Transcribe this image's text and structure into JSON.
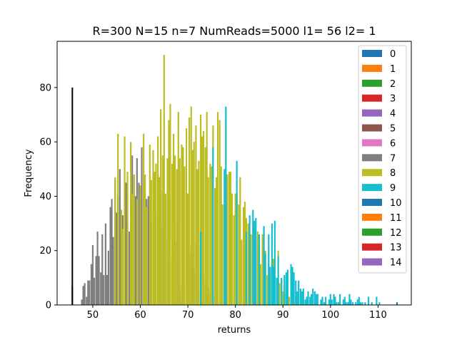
{
  "chart_data": {
    "type": "histogram",
    "title": "R=300 N=15 n=7 NumReads=5000 l1= 56 l2= 1",
    "xlabel": "returns",
    "ylabel": "Frequency",
    "xlim": [
      42.5,
      117.0
    ],
    "ylim": [
      0,
      97
    ],
    "xticks": [
      50,
      60,
      70,
      80,
      90,
      100,
      110
    ],
    "yticks": [
      0,
      20,
      40,
      60,
      80
    ],
    "bin_width": 0.33,
    "legend_position": "upper right",
    "grid": false,
    "series": [
      {
        "name": "0",
        "color": "#1f77b4",
        "x": [
          114.0
        ],
        "y": [
          1
        ]
      },
      {
        "name": "1",
        "color": "#ff7f0e",
        "x": [],
        "y": []
      },
      {
        "name": "2",
        "color": "#2ca02c",
        "x": [],
        "y": []
      },
      {
        "name": "3",
        "color": "#d62728",
        "x": [],
        "y": []
      },
      {
        "name": "4",
        "color": "#9467bd",
        "x": [],
        "y": []
      },
      {
        "name": "5",
        "color": "#8c564b",
        "x": [],
        "y": []
      },
      {
        "name": "6",
        "color": "#e377c2",
        "x": [
          55.3
        ],
        "y": [
          1
        ]
      },
      {
        "name": "7",
        "color": "#7f7f7f",
        "x": [
          45.7,
          47.7,
          48.0,
          48.3,
          48.7,
          49.0,
          49.3,
          49.7,
          50.0,
          50.3,
          50.7,
          51.0,
          51.3,
          51.7,
          52.0,
          52.3,
          52.7,
          53.0,
          53.3,
          53.7,
          54.0,
          54.3,
          54.7,
          55.0,
          55.3,
          55.7,
          56.0,
          56.3,
          56.7,
          57.0,
          57.3,
          57.7,
          58.0,
          58.3,
          58.7,
          59.0,
          59.3,
          59.7,
          60.0,
          60.3,
          60.7,
          61.0,
          61.3,
          61.7,
          62.0,
          62.3,
          62.7,
          63.0,
          63.3,
          63.7,
          64.0,
          64.3,
          64.7,
          65.0,
          65.3,
          65.7,
          66.0,
          66.3,
          66.7,
          67.0,
          67.3,
          67.7,
          68.0,
          68.3,
          68.7,
          69.0,
          69.3,
          69.7,
          70.0,
          70.3,
          70.7,
          71.0,
          71.3,
          71.7,
          72.0,
          72.3,
          72.7,
          73.0,
          73.3,
          73.7,
          74.0,
          74.3,
          74.7,
          75.0,
          75.3,
          75.7,
          76.0,
          76.3
        ],
        "y": [
          7,
          2,
          7,
          8,
          3,
          9,
          9,
          15,
          22,
          10,
          18,
          27,
          18,
          12,
          26,
          11,
          30,
          11,
          20,
          36,
          39,
          25,
          46,
          34,
          40,
          50,
          30,
          33,
          25,
          45,
          32,
          27,
          40,
          55,
          47,
          40,
          54,
          45,
          34,
          58,
          47,
          31,
          39,
          40,
          40,
          31,
          34,
          21,
          33,
          48,
          38,
          42,
          30,
          18,
          40,
          24,
          12,
          17,
          16,
          19,
          23,
          30,
          16,
          5,
          7,
          15,
          7,
          22,
          11,
          19,
          22,
          14,
          12,
          23,
          13,
          10,
          5,
          13,
          11,
          8,
          6,
          6,
          4,
          3,
          5,
          4,
          5,
          1
        ]
      },
      {
        "name": "8",
        "color": "#bcbd22",
        "x": [
          54.7,
          55.3,
          56.0,
          56.3,
          56.7,
          57.3,
          58.0,
          58.3,
          58.7,
          59.3,
          60.0,
          60.7,
          61.0,
          61.3,
          62.0,
          62.3,
          62.7,
          63.0,
          63.3,
          63.7,
          64.0,
          64.3,
          64.7,
          65.0,
          65.3,
          65.7,
          66.0,
          66.3,
          66.7,
          67.0,
          67.3,
          67.7,
          68.0,
          68.3,
          68.7,
          69.0,
          69.3,
          69.7,
          70.0,
          70.3,
          70.7,
          71.0,
          71.3,
          71.7,
          72.0,
          72.3,
          72.7,
          73.0,
          73.3,
          73.7,
          74.0,
          74.3,
          74.7,
          75.0,
          75.3,
          75.7,
          76.0,
          76.3,
          76.7,
          77.0,
          77.3,
          77.7,
          78.0,
          78.3,
          78.7,
          79.0,
          79.3,
          79.7,
          80.0,
          80.3,
          80.7,
          81.0,
          81.3,
          81.7,
          82.0,
          82.3,
          82.7,
          83.0,
          83.3,
          83.7,
          84.0,
          84.3,
          84.7,
          85.0,
          85.3,
          85.7,
          86.0,
          86.3,
          86.7,
          87.0,
          87.3,
          87.7,
          88.0,
          88.3,
          88.7,
          89.0,
          89.3,
          89.7,
          90.0,
          90.3,
          90.7,
          91.0,
          91.3,
          91.7,
          92.0,
          92.3,
          92.7,
          93.0
        ],
        "y": [
          47,
          63,
          35,
          28,
          62,
          49,
          60,
          41,
          48,
          39,
          44,
          63,
          48,
          36,
          59,
          46,
          57,
          49,
          52,
          62,
          47,
          72,
          55,
          92,
          41,
          54,
          68,
          74,
          52,
          63,
          55,
          50,
          71,
          54,
          59,
          58,
          51,
          65,
          41,
          69,
          73,
          57,
          60,
          66,
          50,
          53,
          70,
          62,
          64,
          58,
          71,
          47,
          52,
          51,
          66,
          43,
          47,
          71,
          68,
          51,
          37,
          37,
          68,
          48,
          49,
          49,
          41,
          33,
          41,
          40,
          37,
          47,
          24,
          36,
          38,
          32,
          30,
          24,
          26,
          30,
          28,
          20,
          27,
          22,
          15,
          26,
          14,
          20,
          11,
          21,
          12,
          14,
          17,
          7,
          10,
          20,
          8,
          9,
          5,
          7,
          4,
          7,
          3,
          4,
          4,
          2,
          3,
          2
        ]
      },
      {
        "name": "9",
        "color": "#17becf",
        "x": [
          72.7,
          75.3,
          77.7,
          78.0,
          80.3,
          82.3,
          83.0,
          83.7,
          84.0,
          84.3,
          85.0,
          86.0,
          86.3,
          87.0,
          87.3,
          87.7,
          88.0,
          88.3,
          88.7,
          89.0,
          89.7,
          90.3,
          90.7,
          91.0,
          91.7,
          92.0,
          92.3,
          92.7,
          93.0,
          93.3,
          93.7,
          94.0,
          94.3,
          94.7,
          95.0,
          95.3,
          95.7,
          96.0,
          96.3,
          96.7,
          97.0,
          97.3,
          98.0,
          98.3,
          98.7,
          99.0,
          99.7,
          100.0,
          100.3,
          100.7,
          101.0,
          101.3,
          101.7,
          102.0,
          102.7,
          103.0,
          103.3,
          103.7,
          104.0,
          104.3,
          104.7,
          105.3,
          105.7,
          106.0,
          106.3,
          106.7,
          107.3,
          108.0,
          108.7,
          109.7,
          110.3
        ],
        "y": [
          27,
          58,
          50,
          73,
          53,
          27,
          33,
          35,
          31,
          32,
          26,
          29,
          19,
          26,
          14,
          30,
          14,
          31,
          10,
          18,
          10,
          11,
          12,
          13,
          15,
          14,
          12,
          9,
          5,
          9,
          6,
          5,
          6,
          2,
          3,
          5,
          3,
          4,
          6,
          5,
          4,
          4,
          2,
          3,
          1,
          3,
          2,
          4,
          2,
          4,
          3,
          1,
          1,
          4,
          2,
          3,
          1,
          1,
          4,
          2,
          1,
          1,
          2,
          3,
          1,
          1,
          1,
          3,
          1,
          3,
          1
        ]
      },
      {
        "name": "10",
        "color": "#1f77b4",
        "x": [],
        "y": []
      },
      {
        "name": "11",
        "color": "#ff7f0e",
        "x": [],
        "y": []
      },
      {
        "name": "12",
        "color": "#2ca02c",
        "x": [],
        "y": []
      },
      {
        "name": "13",
        "color": "#d62728",
        "x": [],
        "y": []
      },
      {
        "name": "14",
        "color": "#9467bd",
        "x": [],
        "y": []
      }
    ],
    "vlines": [
      {
        "x": 45.7,
        "y0": 0,
        "y1": 80,
        "color": "#000000"
      }
    ]
  }
}
